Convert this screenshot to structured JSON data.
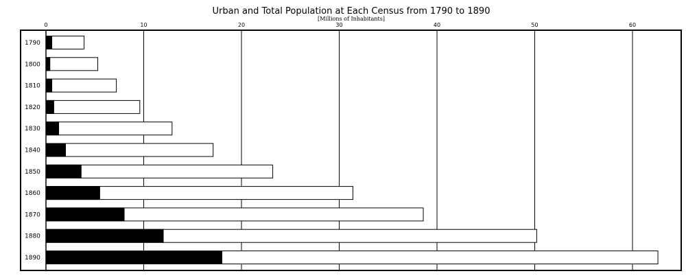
{
  "chart_data": {
    "type": "bar",
    "orientation": "horizontal",
    "stacked": "overlay",
    "title": "Urban and Total Population at Each Census from 1790 to 1890",
    "subtitle": "[Millions of Inhabitants]",
    "xlabel": "",
    "ylabel": "",
    "xlim": [
      0,
      65
    ],
    "x_ticks": [
      "0",
      "10",
      "20",
      "30",
      "40",
      "50",
      "60"
    ],
    "grid": "vertical",
    "categories": [
      "1790",
      "1800",
      "1810",
      "1820",
      "1830",
      "1840",
      "1850",
      "1860",
      "1870",
      "1880",
      "1890"
    ],
    "series": [
      {
        "key": "total",
        "values": [
          3.9,
          5.3,
          7.2,
          9.6,
          12.9,
          17.1,
          23.2,
          31.4,
          38.6,
          50.2,
          62.6
        ],
        "fill": "#ffffff",
        "stroke": "#000000"
      },
      {
        "key": "urban",
        "values": [
          0.6,
          0.4,
          0.6,
          0.8,
          1.3,
          2.0,
          3.6,
          5.5,
          8.0,
          12.0,
          18.0
        ],
        "fill": "#000000",
        "stroke": "#000000"
      }
    ]
  }
}
